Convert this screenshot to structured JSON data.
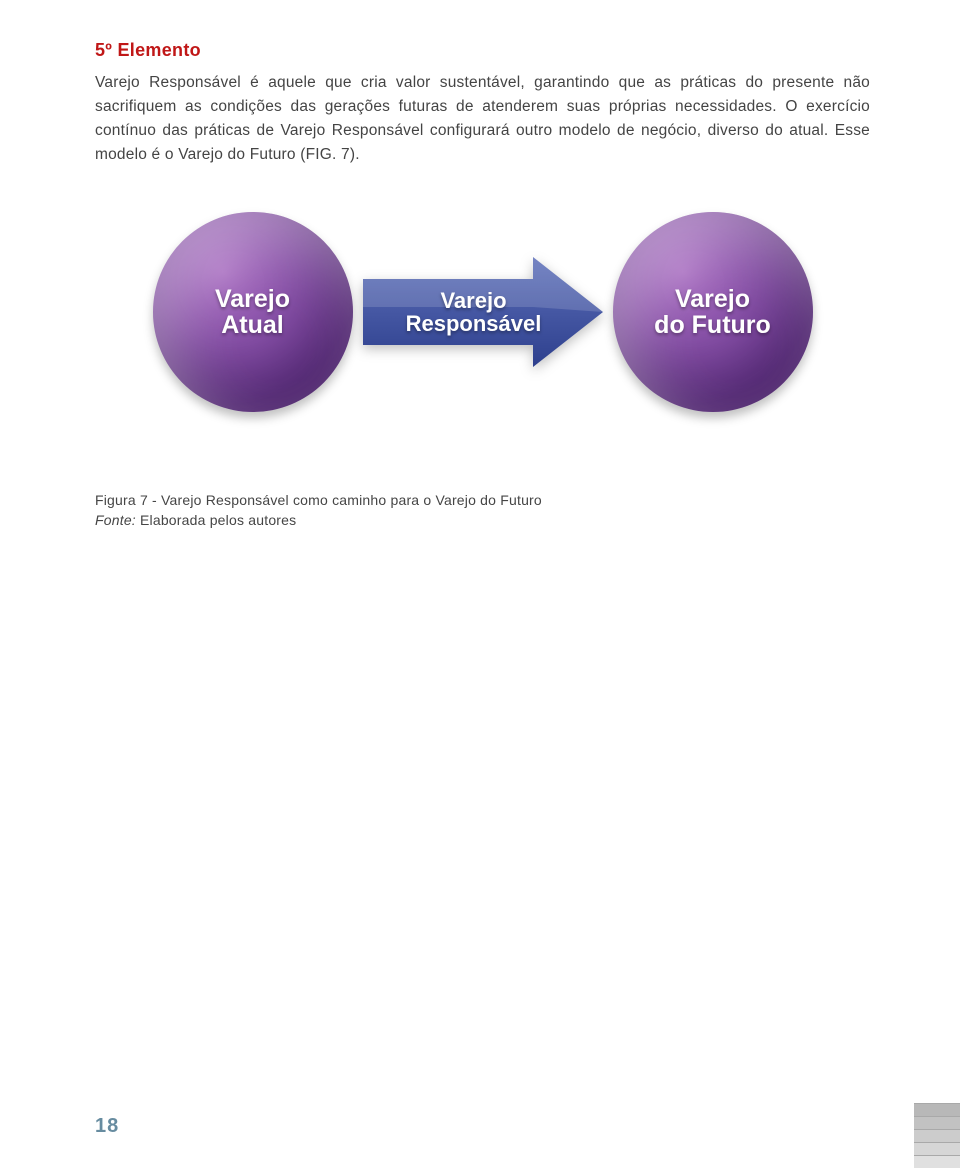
{
  "heading": "5º Elemento",
  "paragraph": "Varejo Responsável é aquele que cria valor sustentável, garantindo que as práticas do presente não sacrifiquem as condições das gerações futuras de atenderem suas próprias necessidades. O exercício contínuo das práticas de Varejo Responsável configurará outro modelo de negócio, diverso do atual. Esse modelo é o Varejo do Futuro (FIG. 7).",
  "diagram": {
    "left_node": {
      "line1": "Varejo",
      "line2": "Atual"
    },
    "arrow_label": {
      "line1": "Varejo",
      "line2": "Responsável"
    },
    "right_node": {
      "line1": "Varejo",
      "line2": "do Futuro"
    },
    "ball_gradient_light": "#a96fc1",
    "ball_gradient_dark": "#6a3592",
    "arrow_gradient_top": "#5d6fb9",
    "arrow_gradient_bottom": "#2d3f8d"
  },
  "caption": "Figura 7 - Varejo Responsável como caminho para o Varejo do Futuro",
  "source_label": "Fonte:",
  "source_text": " Elaborada pelos autores",
  "page_number": "18",
  "spine_colors": [
    "#e0e0e0",
    "#d6d6d6",
    "#cccccc",
    "#c2c2c2",
    "#b8b8b8"
  ]
}
